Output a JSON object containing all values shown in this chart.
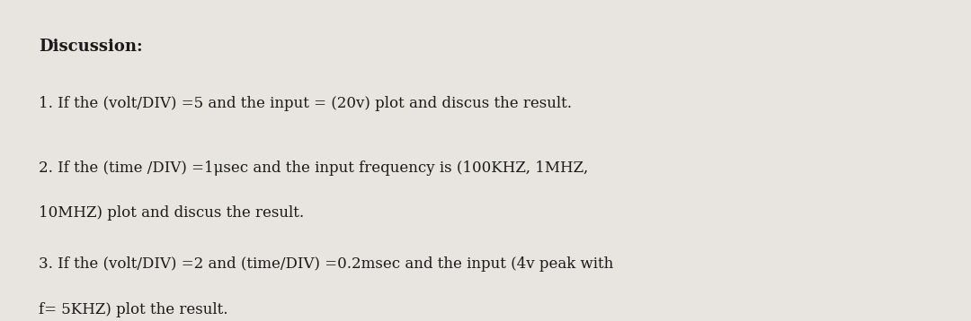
{
  "background_color": "#e8e5e1",
  "title": "Discussion:",
  "title_fontsize": 13,
  "title_bold": true,
  "line1": "1. If the (volt/DIV) =5 and the input = (20v) plot and discus the result.",
  "line2a": "2. If the (time /DIV) =1μsec and the input frequency is (100KHZ, 1MHZ,",
  "line2b": "10MHZ) plot and discus the result.",
  "line3a": "3. If the (volt/DIV) =2 and (time/DIV) =0.2msec and the input (4v peak with",
  "line3b": "f= 5KHZ) plot the result.",
  "text_fontsize": 12,
  "text_color": "#1a1a1a",
  "font_family": "DejaVu Serif"
}
